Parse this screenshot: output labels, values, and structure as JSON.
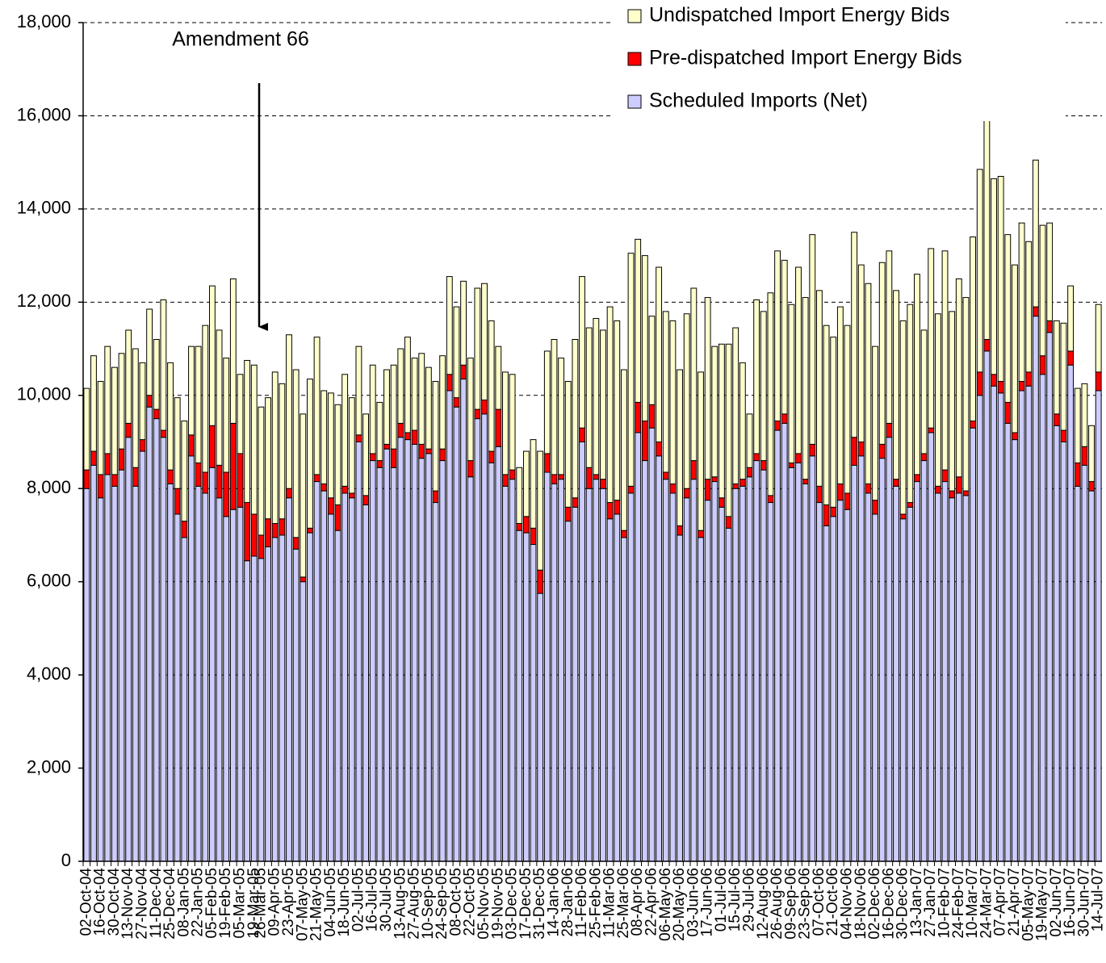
{
  "chart_data": {
    "type": "stacked_bar",
    "annotation": "Amendment 66",
    "legend_position": "top-right",
    "grid": true,
    "ylim": [
      0,
      18000
    ],
    "yticks": [
      0,
      {
        "value": 2000,
        "label": "2,000"
      },
      {
        "value": 4000,
        "label": "4,000"
      },
      {
        "value": 6000,
        "label": "6,000"
      },
      {
        "value": 8000,
        "label": "8,000"
      },
      {
        "value": 10000,
        "label": "10,000"
      },
      {
        "value": 12000,
        "label": "12,000"
      },
      {
        "value": 14000,
        "label": "14,000"
      },
      {
        "value": 16000,
        "label": "16,000"
      },
      {
        "value": 18000,
        "label": "18,000"
      }
    ],
    "categories": [
      "02-Oct-04",
      null,
      "16-Oct-04",
      null,
      "30-Oct-04",
      null,
      "13-Nov-04",
      null,
      "27-Nov-04",
      null,
      "11-Dec-04",
      null,
      "25-Dec-04",
      null,
      "08-Jan-05",
      null,
      "22-Jan-05",
      null,
      "05-Feb-05",
      null,
      "19-Feb-05",
      null,
      "05-Mar-05",
      null,
      "19-Mar-05",
      "26-Mar-05",
      null,
      "09-Apr-05",
      null,
      "23-Apr-05",
      null,
      "07-May-05",
      null,
      "21-May-05",
      null,
      "04-Jun-05",
      null,
      "18-Jun-05",
      null,
      "02-Jul-05",
      null,
      "16-Jul-05",
      null,
      "30-Jul-05",
      null,
      "13-Aug-05",
      null,
      "27-Aug-05",
      null,
      "10-Sep-05",
      null,
      "24-Sep-05",
      null,
      "08-Oct-05",
      null,
      "22-Oct-05",
      null,
      "05-Nov-05",
      null,
      "19-Nov-05",
      null,
      "03-Dec-05",
      null,
      "17-Dec-05",
      null,
      "31-Dec-05",
      null,
      "14-Jan-06",
      null,
      "28-Jan-06",
      null,
      "11-Feb-06",
      null,
      "25-Feb-06",
      null,
      "11-Mar-06",
      null,
      "25-Mar-06",
      null,
      "08-Apr-06",
      null,
      "22-Apr-06",
      null,
      "06-May-06",
      null,
      "20-May-06",
      null,
      "03-Jun-06",
      null,
      "17-Jun-06",
      null,
      "01-Jul-06",
      null,
      "15-Jul-06",
      null,
      "29-Jul-06",
      null,
      "12-Aug-06",
      null,
      "26-Aug-06",
      null,
      "09-Sep-06",
      null,
      "23-Sep-06",
      null,
      "07-Oct-06",
      null,
      "21-Oct-06",
      null,
      "04-Nov-06",
      null,
      "18-Nov-06",
      null,
      "02-Dec-06",
      null,
      "16-Dec-06",
      null,
      "30-Dec-06",
      null,
      "13-Jan-07",
      null,
      "27-Jan-07",
      null,
      "10-Feb-07",
      null,
      "24-Feb-07",
      null,
      "10-Mar-07",
      null,
      "24-Mar-07",
      null,
      "07-Apr-07",
      null,
      "21-Apr-07",
      null,
      "05-May-07",
      null,
      "19-May-07",
      null,
      "02-Jun-07",
      null,
      "16-Jun-07",
      null,
      "30-Jun-07",
      null,
      "14-Jul-07"
    ],
    "series": [
      {
        "name": "Scheduled Imports (Net)",
        "color": "#ccccff",
        "values": [
          8000,
          8500,
          7800,
          8300,
          8050,
          8400,
          9100,
          8050,
          8800,
          9750,
          9500,
          9100,
          8100,
          7450,
          6950,
          8700,
          8050,
          7900,
          8450,
          7800,
          7400,
          7550,
          7600,
          6450,
          6550,
          6500,
          6750,
          6950,
          7000,
          7800,
          6700,
          6000,
          7050,
          8150,
          7950,
          7450,
          7100,
          7900,
          7800,
          9000,
          7650,
          8600,
          8450,
          8850,
          8450,
          9100,
          9050,
          8950,
          8650,
          8750,
          7700,
          8600,
          10100,
          9750,
          10350,
          8250,
          9500,
          9600,
          8550,
          8900,
          8050,
          8200,
          7100,
          7050,
          6800,
          5750,
          8350,
          8100,
          8200,
          7300,
          7600,
          9000,
          8000,
          8200,
          8000,
          7350,
          7450,
          6950,
          7900,
          9200,
          8600,
          9300,
          8700,
          8200,
          7900,
          7000,
          7800,
          8200,
          6950,
          7750,
          8150,
          7600,
          7150,
          8000,
          8050,
          8250,
          8600,
          8400,
          7700,
          9250,
          9400,
          8450,
          8550,
          8100,
          8700,
          7700,
          7200,
          7400,
          7750,
          7550,
          8500,
          8700,
          7900,
          7450,
          8650,
          9100,
          8050,
          7350,
          7600,
          8150,
          8600,
          9200,
          7900,
          8150,
          7800,
          7900,
          7850,
          9300,
          10000,
          10950,
          10200,
          10050,
          9400,
          9050,
          10100,
          10200,
          11700,
          10450,
          11350,
          9350,
          9000,
          10650,
          8050,
          8500,
          7950,
          10100
        ]
      },
      {
        "name": "Pre-dispatched Import Energy Bids",
        "color": "#ff0000",
        "values": [
          400,
          300,
          500,
          450,
          250,
          450,
          300,
          400,
          250,
          250,
          200,
          150,
          300,
          550,
          350,
          450,
          500,
          450,
          900,
          700,
          950,
          1850,
          1150,
          1250,
          900,
          500,
          600,
          300,
          350,
          200,
          250,
          100,
          100,
          150,
          150,
          350,
          550,
          150,
          100,
          150,
          200,
          150,
          150,
          100,
          400,
          300,
          150,
          300,
          300,
          100,
          250,
          250,
          350,
          200,
          300,
          350,
          200,
          300,
          250,
          800,
          250,
          200,
          150,
          350,
          350,
          500,
          400,
          200,
          100,
          300,
          200,
          300,
          450,
          100,
          200,
          350,
          300,
          150,
          150,
          650,
          850,
          500,
          300,
          150,
          200,
          200,
          200,
          400,
          150,
          450,
          100,
          200,
          250,
          100,
          150,
          200,
          150,
          200,
          150,
          200,
          200,
          100,
          200,
          100,
          250,
          350,
          450,
          200,
          350,
          350,
          600,
          300,
          200,
          300,
          300,
          300,
          150,
          100,
          100,
          150,
          150,
          100,
          150,
          250,
          150,
          350,
          100,
          150,
          500,
          250,
          250,
          250,
          450,
          150,
          200,
          300,
          200,
          400,
          250,
          250,
          250,
          300,
          500,
          400,
          200,
          400
        ]
      },
      {
        "name": "Undispatched Import Energy Bids",
        "color": "#ffffcc",
        "values": [
          1750,
          2050,
          2000,
          2300,
          2300,
          2050,
          2000,
          2550,
          1650,
          1850,
          1500,
          2800,
          2300,
          1950,
          2150,
          1900,
          2500,
          3150,
          3000,
          2900,
          2450,
          3100,
          1700,
          3050,
          3200,
          2750,
          2600,
          3250,
          2900,
          3300,
          3600,
          3500,
          3200,
          2950,
          2000,
          2250,
          2150,
          2400,
          2050,
          1900,
          1750,
          1900,
          1250,
          1600,
          1800,
          1600,
          2050,
          1550,
          1950,
          1750,
          2350,
          2000,
          2100,
          1950,
          1800,
          2200,
          2600,
          2500,
          2800,
          1350,
          2200,
          2050,
          1200,
          1400,
          1900,
          2550,
          2200,
          2900,
          2500,
          2700,
          3400,
          3250,
          3000,
          3350,
          3200,
          4200,
          3850,
          3450,
          5000,
          3500,
          3550,
          1900,
          3750,
          3450,
          3500,
          3350,
          3750,
          3700,
          3400,
          3900,
          2800,
          3300,
          3700,
          3350,
          2500,
          1150,
          3300,
          3200,
          4350,
          3650,
          3300,
          3400,
          4000,
          3900,
          4500,
          4200,
          3850,
          3650,
          3800,
          3600,
          4400,
          3800,
          4300,
          3300,
          3900,
          3700,
          4050,
          4150,
          4250,
          4300,
          2650,
          3850,
          3700,
          4700,
          3850,
          4250,
          4150,
          3950,
          4350,
          4700,
          4200,
          4400,
          3600,
          3600,
          3400,
          2800,
          3150,
          2800,
          2100,
          2000,
          2300,
          1400,
          1600,
          1350,
          1200,
          1450
        ]
      }
    ]
  }
}
